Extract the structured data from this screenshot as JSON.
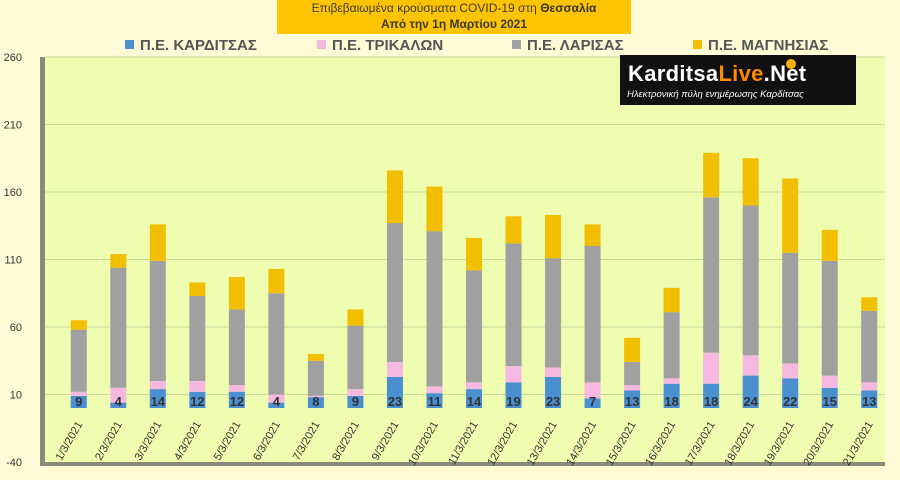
{
  "title_line1_prefix": "Επιβεβαιωμένα κρούσματα COVID-19 στη",
  "title_line1_region": "Θεσσαλία",
  "title_line2": "Από την 1η Μαρτίου 2021",
  "legend": [
    "Π.Ε. ΚΑΡΔΙΤΣΑΣ",
    "Π.Ε. ΤΡΙΚΑΛΩΝ",
    "Π.Ε. ΛΑΡΙΣΑΣ",
    "Π.Ε. ΜΑΓΝΗΣΙΑΣ"
  ],
  "logo": {
    "name_part1": "Karditsa",
    "name_part2": "Live",
    "name_part3": ".Net",
    "tagline": "Ηλεκτρονική πύλη ενημέρωσης Καρδίτσας"
  },
  "colors": {
    "karditsa": "#4A90D0",
    "trikala": "#F5B8E0",
    "larisa": "#A0A0A0",
    "magnisia": "#F2BE00",
    "plot_bg": "#EEFDB0",
    "page_bg": "#FFFBD6",
    "title_bg": "#FFC400"
  },
  "chart_data": {
    "type": "bar",
    "stacked": true,
    "title": "Επιβεβαιωμένα κρούσματα COVID-19 στη Θεσσαλία",
    "subtitle": "Από την 1η Μαρτίου 2021",
    "ylim": [
      -40,
      260
    ],
    "yticks": [
      -40,
      10,
      60,
      110,
      160,
      210,
      260
    ],
    "grid": true,
    "legend_position": "top",
    "categories": [
      "1/3/2021",
      "2/3/2021",
      "3/3/2021",
      "4/3/2021",
      "5/3/2021",
      "6/3/2021",
      "7/3/2021",
      "8/3/2021",
      "9/3/2021",
      "10/3/2021",
      "11/3/2021",
      "12/3/2021",
      "13/3/2021",
      "14/3/2021",
      "15/3/2021",
      "16/3/2021",
      "17/3/2021",
      "18/3/2021",
      "19/3/2021",
      "20/3/2021",
      "21/3/2021"
    ],
    "series": [
      {
        "name": "Π.Ε. ΚΑΡΔΙΤΣΑΣ",
        "values": [
          9,
          4,
          14,
          12,
          12,
          4,
          8,
          9,
          23,
          11,
          14,
          19,
          23,
          7,
          13,
          18,
          18,
          24,
          22,
          15,
          13
        ]
      },
      {
        "name": "Π.Ε. ΤΡΙΚΑΛΩΝ",
        "values": [
          3,
          11,
          6,
          8,
          5,
          6,
          1,
          5,
          11,
          5,
          5,
          12,
          7,
          12,
          4,
          4,
          23,
          15,
          11,
          9,
          6
        ]
      },
      {
        "name": "Π.Ε. ΛΑΡΙΣΑΣ",
        "values": [
          46,
          89,
          89,
          63,
          56,
          75,
          26,
          47,
          103,
          115,
          83,
          91,
          81,
          101,
          17,
          49,
          115,
          111,
          82,
          85,
          53
        ]
      },
      {
        "name": "Π.Ε. ΜΑΓΝΗΣΙΑΣ",
        "values": [
          7,
          10,
          27,
          10,
          24,
          18,
          5,
          12,
          39,
          33,
          24,
          20,
          32,
          16,
          18,
          18,
          33,
          35,
          55,
          23,
          10
        ]
      }
    ],
    "data_labels": [
      "9",
      "4",
      "14",
      "12",
      "12",
      "4",
      "8",
      "9",
      "23",
      "11",
      "14",
      "19",
      "23",
      "7",
      "13",
      "18",
      "18",
      "24",
      "22",
      "15",
      "13"
    ]
  }
}
